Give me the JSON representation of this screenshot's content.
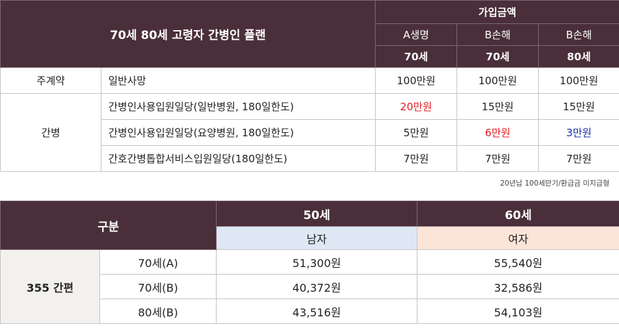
{
  "plan": {
    "title": "70세 80세 고령자 간병인 플랜",
    "group_header": "가입금액",
    "columns": [
      {
        "insurer": "A생명",
        "age": "70세"
      },
      {
        "insurer": "B손해",
        "age": "70세"
      },
      {
        "insurer": "B손해",
        "age": "80세"
      }
    ],
    "rows": [
      {
        "category": "주계약",
        "item": "일반사망",
        "values": [
          "100만원",
          "100만원",
          "100만원"
        ],
        "colors": [
          "",
          "",
          ""
        ]
      },
      {
        "category": "간병",
        "item": "간병인사용입원일당(일반병원, 180일한도)",
        "values": [
          "20만원",
          "15만원",
          "15만원"
        ],
        "colors": [
          "#e31b23",
          "",
          ""
        ]
      },
      {
        "category": "",
        "item": "간병인사용입원일당(요양병원, 180일한도)",
        "values": [
          "5만원",
          "6만원",
          "3만원"
        ],
        "colors": [
          "",
          "#e31b23",
          "#1a2ea8"
        ]
      },
      {
        "category": "",
        "item": "간호간병톱합서비스입원일당(180일한도)",
        "values": [
          "7만원",
          "7만원",
          "7만원"
        ],
        "colors": [
          "",
          "",
          ""
        ]
      }
    ],
    "note": "20년납 100세만기/환급금 미지급형"
  },
  "premium": {
    "header_label": "구분",
    "ages": [
      "50세",
      "60세"
    ],
    "genders": [
      "남자",
      "여자"
    ],
    "row_group": "355 간편",
    "rows": [
      {
        "label": "70세(A)",
        "values": [
          "51,300원",
          "55,540원"
        ]
      },
      {
        "label": "70세(B)",
        "values": [
          "40,372원",
          "32,586원"
        ]
      },
      {
        "label": "80세(B)",
        "values": [
          "43,516원",
          "54,103원"
        ]
      }
    ]
  }
}
